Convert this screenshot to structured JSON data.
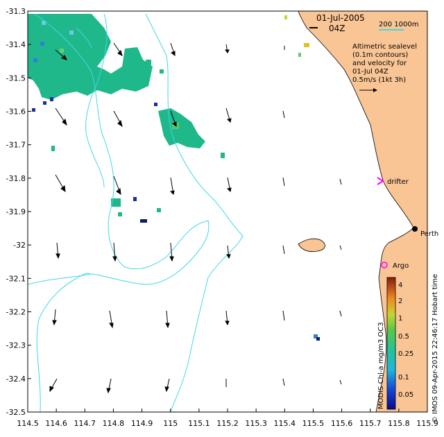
{
  "map": {
    "date": "01-Jul-2005",
    "time": "04Z",
    "scale_text": "200  1000m",
    "description_lines": [
      "Altimetric sealevel",
      "(0.1m contours)",
      "and velocity for",
      "01-Jul 04Z",
      "0.5m/s (1kt 3h)"
    ],
    "labels": {
      "drifter": "drifter",
      "argo": "Argo",
      "perth": "Perth"
    },
    "colorbar_title": "MODIS Chl-a mg/m3 OC3",
    "colorbar_ticks": [
      "4",
      "2",
      "1",
      "0.5",
      "0.25",
      "0.1",
      "0.05"
    ],
    "credit": "© IMOS 09-Apr-2015 22:46:17 Hobart time",
    "x_ticks": [
      "114.5",
      "114.6",
      "114.7",
      "114.8",
      "114.9",
      "115",
      "115.1",
      "115.2",
      "115.3",
      "115.4",
      "115.5",
      "115.6",
      "115.7",
      "115.8",
      "115.9"
    ],
    "y_ticks": [
      "-31.3",
      "-31.4",
      "-31.5",
      "-31.6",
      "-31.7",
      "-31.8",
      "-31.9",
      "-32",
      "-32.1",
      "-32.2",
      "-32.3",
      "-32.4",
      "-32.5"
    ],
    "colors": {
      "land": "#f9c595",
      "contour": "#3fd8e8",
      "chl_main": "#1fb88a",
      "drifter": "#ff00ff",
      "argo": "#ff00ff"
    }
  }
}
